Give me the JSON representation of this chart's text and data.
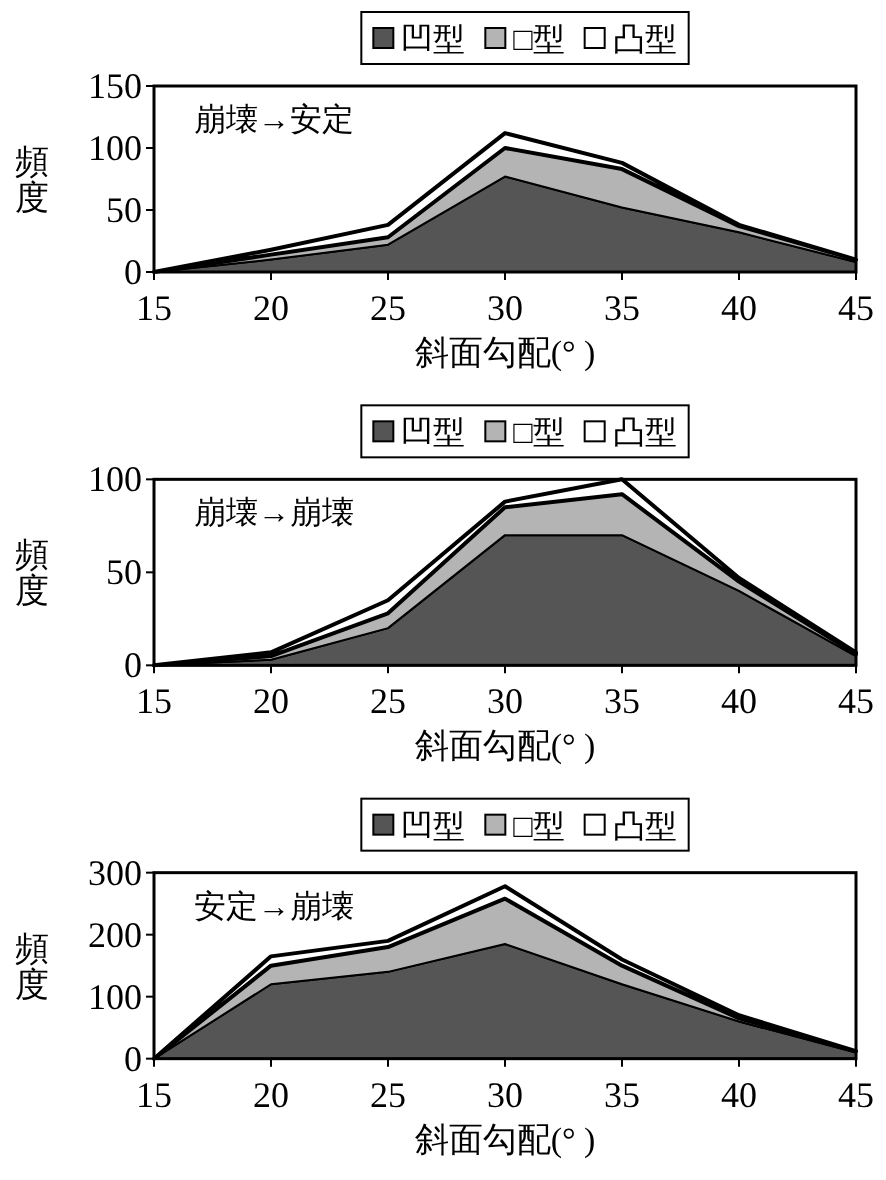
{
  "chart_data": [
    {
      "type": "area",
      "stacked": true,
      "legend": "top",
      "xlabel": "斜面勾配(°  )",
      "ylabel": "頻度",
      "annotations": [
        "崩壊→安定"
      ],
      "x": [
        15,
        20,
        25,
        30,
        35,
        40,
        45
      ],
      "xlim": [
        15,
        45
      ],
      "xticks": [
        15,
        20,
        25,
        30,
        35,
        40,
        45
      ],
      "ylim": [
        0,
        150
      ],
      "yticks": [
        0,
        50,
        100,
        150
      ],
      "series": [
        {
          "name": "凹型",
          "color": "#555555",
          "values": [
            0,
            10,
            22,
            77,
            52,
            32,
            8
          ]
        },
        {
          "name": "□型",
          "color": "#b4b4b4",
          "values": [
            0,
            4,
            6,
            23,
            31,
            5,
            2
          ]
        },
        {
          "name": "凸型",
          "color": "#ffffff",
          "values": [
            0,
            4,
            10,
            12,
            5,
            1,
            0
          ]
        }
      ]
    },
    {
      "type": "area",
      "stacked": true,
      "legend": "top",
      "xlabel": "斜面勾配(°  )",
      "ylabel": "頻度",
      "annotations": [
        "崩壊→崩壊"
      ],
      "x": [
        15,
        20,
        25,
        30,
        35,
        40,
        45
      ],
      "xlim": [
        15,
        45
      ],
      "xticks": [
        15,
        20,
        25,
        30,
        35,
        40,
        45
      ],
      "ylim": [
        0,
        100
      ],
      "yticks": [
        0,
        50,
        100
      ],
      "series": [
        {
          "name": "凹型",
          "color": "#555555",
          "values": [
            0,
            3,
            20,
            70,
            70,
            40,
            5
          ]
        },
        {
          "name": "□型",
          "color": "#b4b4b4",
          "values": [
            0,
            2,
            8,
            15,
            22,
            5,
            1
          ]
        },
        {
          "name": "凸型",
          "color": "#ffffff",
          "values": [
            0,
            2,
            7,
            3,
            8,
            2,
            1
          ]
        }
      ]
    },
    {
      "type": "area",
      "stacked": true,
      "legend": "top",
      "xlabel": "斜面勾配(°  )",
      "ylabel": "頻度",
      "annotations": [
        "安定→崩壊"
      ],
      "x": [
        15,
        20,
        25,
        30,
        35,
        40,
        45
      ],
      "xlim": [
        15,
        45
      ],
      "xticks": [
        15,
        20,
        25,
        30,
        35,
        40,
        45
      ],
      "ylim": [
        0,
        300
      ],
      "yticks": [
        0,
        100,
        200,
        300
      ],
      "series": [
        {
          "name": "凹型",
          "color": "#555555",
          "values": [
            0,
            120,
            140,
            185,
            120,
            60,
            10
          ]
        },
        {
          "name": "□型",
          "color": "#b4b4b4",
          "values": [
            0,
            30,
            40,
            73,
            30,
            5,
            2
          ]
        },
        {
          "name": "凸型",
          "color": "#ffffff",
          "values": [
            0,
            15,
            10,
            20,
            10,
            5,
            0
          ]
        }
      ]
    }
  ]
}
